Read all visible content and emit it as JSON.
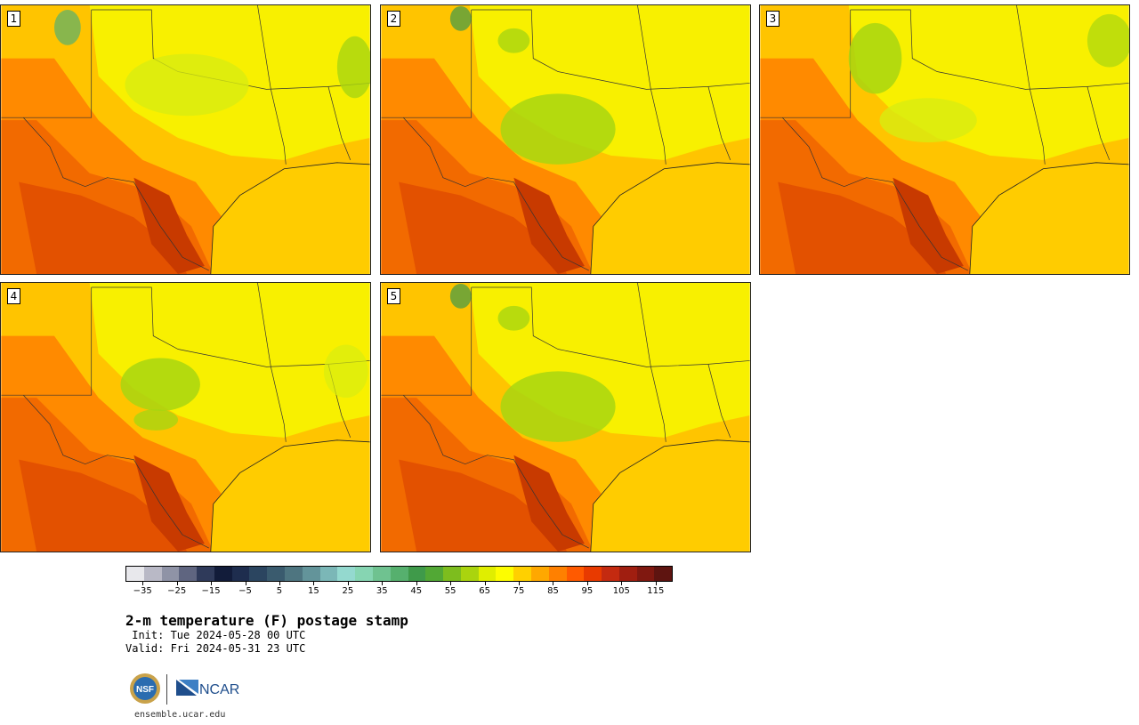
{
  "stamps": [
    {
      "label": "1"
    },
    {
      "label": "2"
    },
    {
      "label": "3"
    },
    {
      "label": "4"
    },
    {
      "label": "5"
    }
  ],
  "colorbar": {
    "colors": [
      "#e8e8ec",
      "#b9b9c6",
      "#8f93a6",
      "#5f6580",
      "#2f3a5a",
      "#121c3a",
      "#1e2d4e",
      "#2b4560",
      "#3a5b6e",
      "#4e7580",
      "#63949a",
      "#7bb7b7",
      "#94d9cf",
      "#86d5b2",
      "#6fc290",
      "#56b06e",
      "#3f9a4a",
      "#52a835",
      "#7dbd1e",
      "#aad40e",
      "#e0ee00",
      "#fdfd00",
      "#ffd000",
      "#ffa800",
      "#ff8000",
      "#ff5a00",
      "#e83a00",
      "#c42a10",
      "#a01e10",
      "#801810",
      "#5e1410"
    ],
    "tick_values": [
      -35,
      -25,
      -15,
      -5,
      5,
      15,
      25,
      35,
      45,
      55,
      65,
      75,
      85,
      95,
      105,
      115
    ],
    "tick_labels": [
      "−35",
      "−25",
      "−15",
      "−5",
      "5",
      "15",
      "25",
      "35",
      "45",
      "55",
      "65",
      "75",
      "85",
      "95",
      "105",
      "115"
    ],
    "range": [
      -40,
      120
    ]
  },
  "title": "2-m temperature (F) postage stamp",
  "init_line": " Init: Tue 2024-05-28 00 UTC",
  "valid_line": "Valid: Fri 2024-05-31 23 UTC",
  "logos": {
    "nsf": "NSF",
    "ncar": "NCAR"
  },
  "url": "ensemble.ucar.edu"
}
